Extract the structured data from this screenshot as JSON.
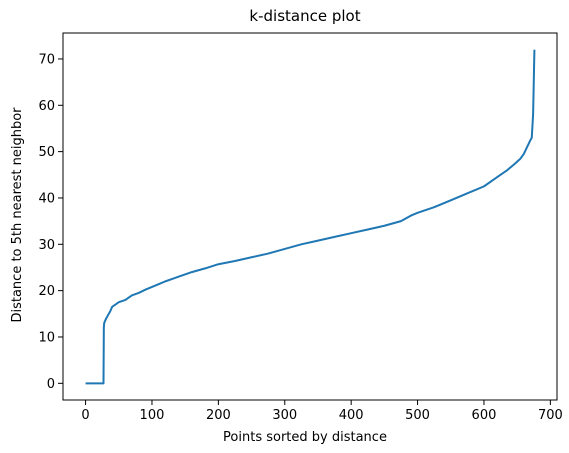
{
  "chart_data": {
    "type": "line",
    "title": "k-distance plot",
    "xlabel": "Points sorted by distance",
    "ylabel": "Distance to 5th nearest neighbor",
    "xlim": [
      -34,
      710
    ],
    "ylim": [
      -3.6,
      75.6
    ],
    "xticks": [
      0,
      100,
      200,
      300,
      400,
      500,
      600,
      700
    ],
    "yticks": [
      0,
      10,
      20,
      30,
      40,
      50,
      60,
      70
    ],
    "grid": false,
    "line_color": "#1f77b4",
    "series": [
      {
        "x": [
          0,
          27,
          27.5,
          28,
          31,
          33,
          35,
          37,
          40,
          45,
          50,
          60,
          65,
          70,
          80,
          90,
          100,
          110,
          120,
          130,
          140,
          160,
          180,
          200,
          225,
          250,
          275,
          300,
          325,
          350,
          375,
          400,
          425,
          450,
          475,
          490,
          500,
          525,
          550,
          575,
          600,
          620,
          635,
          645,
          655,
          660,
          665,
          670,
          672,
          674,
          675,
          676
        ],
        "y": [
          0,
          0,
          12,
          13,
          14,
          14.5,
          15,
          15.5,
          16.5,
          17,
          17.5,
          18,
          18.5,
          19,
          19.5,
          20.2,
          20.8,
          21.4,
          22,
          22.5,
          23,
          24,
          24.8,
          25.7,
          26.4,
          27.2,
          28,
          29,
          30,
          30.8,
          31.6,
          32.4,
          33.2,
          34,
          35,
          36.2,
          36.8,
          38,
          39.5,
          41,
          42.5,
          44.5,
          46,
          47.2,
          48.5,
          49.5,
          51,
          52.5,
          53,
          58,
          65,
          72
        ]
      }
    ]
  }
}
